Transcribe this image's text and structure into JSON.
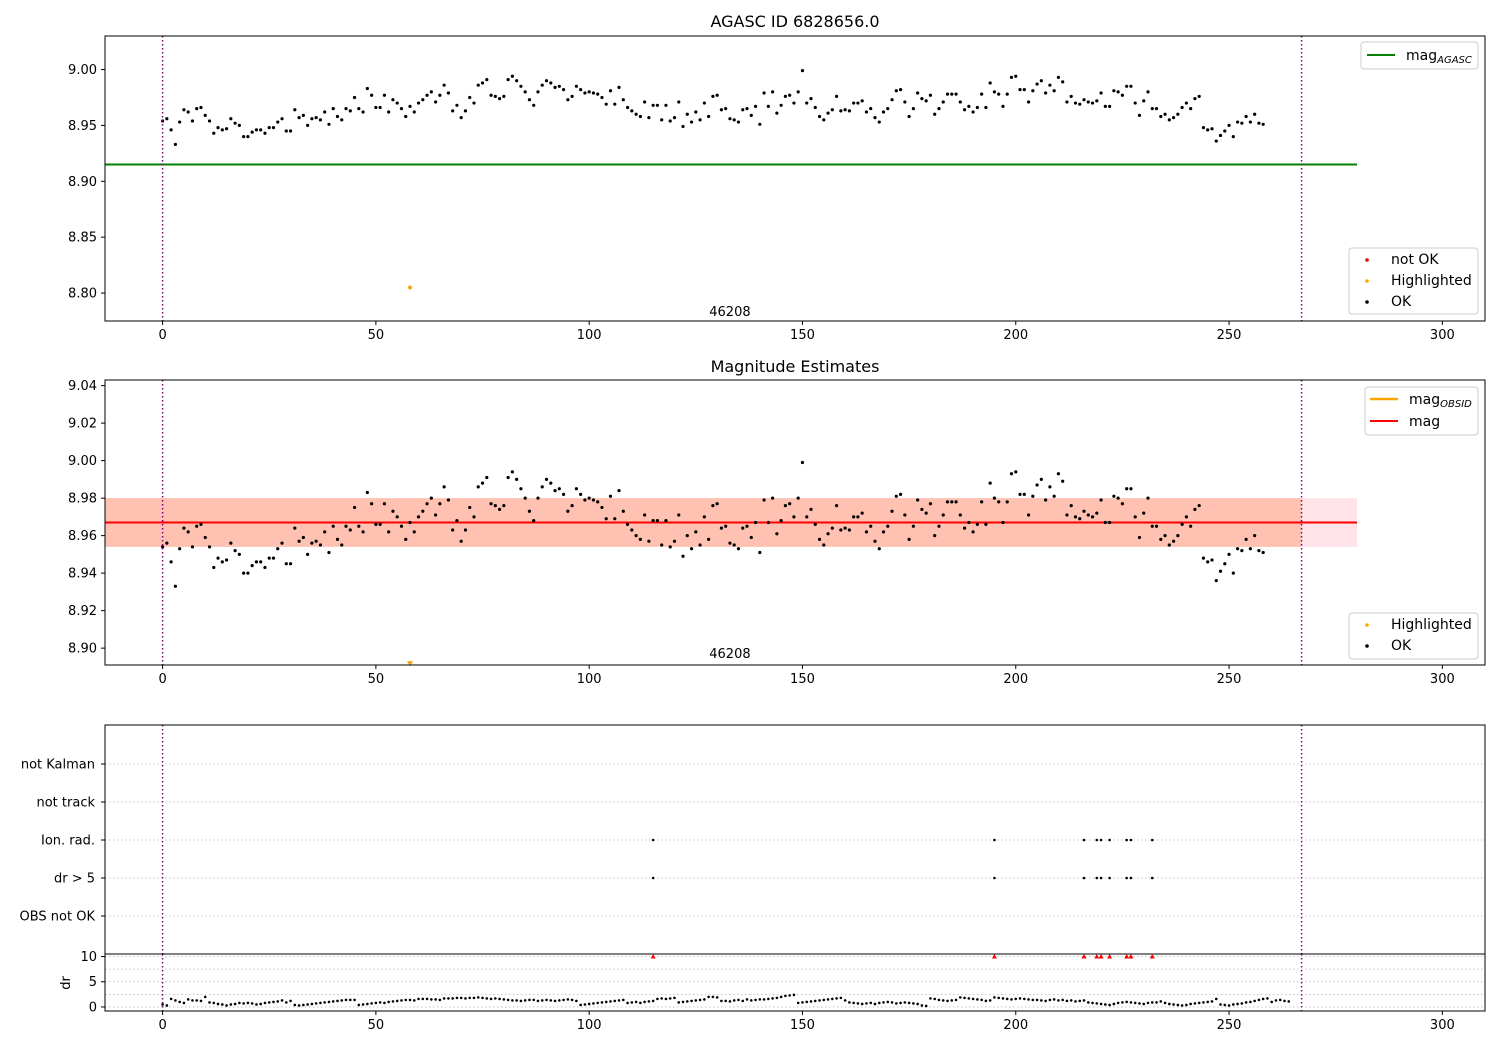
{
  "chart_data": [
    {
      "type": "scatter",
      "title": "AGASC ID 6828656.0",
      "xlim": [
        -13.5,
        310
      ],
      "ylim": [
        8.775,
        9.03
      ],
      "xticks": [
        0,
        50,
        100,
        150,
        200,
        250,
        300
      ],
      "yticks": [
        8.8,
        8.85,
        8.9,
        8.95,
        9.0
      ],
      "reference_lines": [
        {
          "name": "mag",
          "subscript": "AGASC",
          "y": 8.915,
          "x_range": [
            -13.5,
            280
          ],
          "color": "#008000"
        }
      ],
      "vlines": [
        0,
        267
      ],
      "annotation": {
        "text": "46208",
        "x": 133,
        "y": 8.783
      },
      "legend_lines_position": "upper right",
      "legend_points_position": "lower right",
      "legend_points": [
        {
          "name": "not OK",
          "color": "#ff0000"
        },
        {
          "name": "Highlighted",
          "color": "#ffa500"
        },
        {
          "name": "OK",
          "color": "#000000"
        }
      ],
      "highlighted_points": [
        {
          "x": 58,
          "y": 8.805
        }
      ],
      "grid": false
    },
    {
      "type": "scatter",
      "title": "Magnitude Estimates",
      "xlim": [
        -13.5,
        310
      ],
      "ylim": [
        8.891,
        9.043
      ],
      "xticks": [
        0,
        50,
        100,
        150,
        200,
        250,
        300
      ],
      "yticks": [
        8.9,
        8.92,
        8.94,
        8.96,
        8.98,
        9.0,
        9.02,
        9.04
      ],
      "reference_lines": [
        {
          "name": "mag",
          "subscript": "OBSID",
          "color": "#ffa500"
        },
        {
          "name": "mag",
          "y": 8.967,
          "x_range": [
            -13.5,
            280
          ],
          "color": "#ff0000"
        }
      ],
      "bands": [
        {
          "y_range": [
            8.954,
            8.98
          ],
          "x_range": [
            -13.5,
            280
          ],
          "color": "#ffc0cb"
        },
        {
          "y_range": [
            8.954,
            8.98
          ],
          "x_range": [
            -13.5,
            267
          ],
          "color": "#ffa07a"
        }
      ],
      "vlines": [
        0,
        267
      ],
      "annotation": {
        "text": "46208",
        "x": 133,
        "y": 8.897
      },
      "legend_lines_position": "upper right",
      "legend_points_position": "lower right",
      "legend_points": [
        {
          "name": "Highlighted",
          "color": "#ffa500"
        },
        {
          "name": "OK",
          "color": "#000000"
        }
      ],
      "highlighted_points": [
        {
          "x": 58,
          "y": 8.892
        }
      ],
      "grid": false
    },
    {
      "type": "scatter",
      "xlim": [
        -13.5,
        310
      ],
      "categories": [
        "not Kalman",
        "not track",
        "Ion. rad.",
        "dr > 5",
        "OBS not OK"
      ],
      "flagged_x": {
        "Ion. rad.": [
          115,
          195,
          216,
          219,
          220,
          222,
          226,
          227,
          232
        ],
        "dr > 5": [
          115,
          195,
          216,
          219,
          220,
          222,
          226,
          227,
          232
        ]
      },
      "vlines": [
        0,
        267
      ],
      "grid": "y-dotted"
    },
    {
      "type": "scatter",
      "ylabel": "dr",
      "xlim": [
        -13.5,
        310
      ],
      "ylim": [
        -0.8,
        10.5
      ],
      "xticks": [
        0,
        50,
        100,
        150,
        200,
        250,
        300
      ],
      "yticks": [
        0,
        5,
        10
      ],
      "flagged_x": [
        115,
        195,
        216,
        219,
        220,
        222,
        226,
        227,
        232
      ],
      "flagged_y": 10,
      "vlines": [
        0,
        267
      ],
      "grid": "y-dotted"
    }
  ],
  "shared_series": {
    "x_start": 0,
    "x_step": 1,
    "mag": [
      8.954,
      8.956,
      8.946,
      8.933,
      8.953,
      8.964,
      8.962,
      8.954,
      8.965,
      8.966,
      8.959,
      8.954,
      8.943,
      8.948,
      8.946,
      8.947,
      8.956,
      8.952,
      8.95,
      8.94,
      8.94,
      8.944,
      8.946,
      8.946,
      8.943,
      8.948,
      8.948,
      8.953,
      8.956,
      8.945,
      8.945,
      8.964,
      8.957,
      8.959,
      8.95,
      8.956,
      8.957,
      8.955,
      8.962,
      8.951,
      8.965,
      8.958,
      8.955,
      8.965,
      8.963,
      8.975,
      8.965,
      8.962,
      8.983,
      8.977,
      8.966,
      8.966,
      8.977,
      8.962,
      8.973,
      8.97,
      8.965,
      8.958,
      8.967,
      8.962,
      8.97,
      8.973,
      8.977,
      8.98,
      8.971,
      8.977,
      8.986,
      8.979,
      8.963,
      8.968,
      8.957,
      8.963,
      8.975,
      8.97,
      8.986,
      8.988,
      8.991,
      8.977,
      8.976,
      8.974,
      8.976,
      8.991,
      8.994,
      8.99,
      8.985,
      8.98,
      8.973,
      8.968,
      8.98,
      8.986,
      8.99,
      8.988,
      8.984,
      8.985,
      8.982,
      8.973,
      8.976,
      8.985,
      8.982,
      8.979,
      8.98,
      8.979,
      8.978,
      8.975,
      8.969,
      8.981,
      8.969,
      8.984,
      8.973,
      8.966,
      8.963,
      8.96,
      8.958,
      8.971,
      8.957,
      8.968,
      8.968,
      8.955,
      8.968,
      8.954,
      8.957,
      8.971,
      8.949,
      8.96,
      8.953,
      8.962,
      8.955,
      8.97,
      8.958,
      8.976,
      8.977,
      8.964,
      8.965,
      8.956,
      8.955,
      8.953,
      8.964,
      8.965,
      8.959,
      8.967,
      8.951,
      8.979,
      8.967,
      8.98,
      8.961,
      8.968,
      8.976,
      8.977,
      8.97,
      8.98,
      8.999,
      8.97,
      8.974,
      8.966,
      8.958,
      8.955,
      8.961,
      8.964,
      8.976,
      8.963,
      8.964,
      8.963,
      8.97,
      8.97,
      8.972,
      8.962,
      8.965,
      8.957,
      8.953,
      8.962,
      8.965,
      8.973,
      8.981,
      8.982,
      8.971,
      8.958,
      8.965,
      8.979,
      8.974,
      8.972,
      8.977,
      8.96,
      8.965,
      8.971,
      8.978,
      8.978,
      8.978,
      8.971,
      8.964,
      8.967,
      8.962,
      8.966,
      8.978,
      8.966,
      8.988,
      8.98,
      8.978,
      8.967,
      8.978,
      8.993,
      8.994,
      8.982,
      8.982,
      8.971,
      8.981,
      8.987,
      8.99,
      8.979,
      8.986,
      8.981,
      8.993,
      8.989,
      8.971,
      8.976,
      8.97,
      8.969,
      8.973,
      8.971,
      8.97,
      8.972,
      8.979,
      8.967,
      8.967,
      8.981,
      8.98,
      8.977,
      8.985,
      8.985,
      8.97,
      8.959,
      8.972,
      8.98,
      8.965,
      8.965,
      8.958,
      8.96,
      8.955,
      8.957,
      8.96,
      8.966,
      8.97,
      8.965,
      8.974,
      8.976,
      8.948,
      8.946,
      8.947,
      8.936,
      8.941,
      8.945,
      8.95,
      8.94,
      8.953,
      8.952,
      8.958,
      8.953,
      8.96,
      8.952,
      8.951
    ],
    "dr": [
      0.5,
      0.3,
      1.6,
      1.3,
      1.0,
      0.8,
      1.5,
      1.3,
      1.3,
      1.2,
      2.0,
      0.9,
      0.8,
      0.6,
      0.5,
      0.3,
      0.5,
      0.6,
      0.8,
      0.7,
      0.8,
      0.7,
      0.5,
      0.6,
      0.8,
      0.9,
      1.0,
      1.1,
      1.3,
      0.9,
      1.2,
      0.4,
      0.3,
      0.4,
      0.5,
      0.6,
      0.7,
      0.8,
      0.9,
      1.0,
      1.1,
      1.2,
      1.3,
      1.4,
      1.4,
      1.4,
      0.4,
      0.5,
      0.6,
      0.7,
      0.8,
      0.9,
      0.8,
      1.0,
      1.1,
      1.2,
      1.3,
      1.4,
      1.4,
      1.3,
      1.6,
      1.6,
      1.6,
      1.5,
      1.5,
      1.4,
      1.7,
      1.7,
      1.7,
      1.8,
      1.8,
      1.7,
      1.8,
      1.8,
      1.9,
      1.8,
      1.7,
      1.6,
      1.7,
      1.6,
      1.5,
      1.4,
      1.3,
      1.3,
      1.2,
      1.3,
      1.4,
      1.4,
      1.2,
      1.3,
      1.4,
      1.3,
      1.2,
      1.3,
      1.4,
      1.5,
      1.4,
      1.2,
      0.4,
      0.5,
      0.6,
      0.7,
      0.8,
      0.9,
      1.0,
      1.1,
      1.2,
      1.3,
      1.4,
      0.8,
      0.9,
      1.0,
      0.8,
      1.0,
      1.1,
      1.2,
      1.6,
      1.7,
      1.6,
      1.7,
      1.8,
      0.9,
      1.0,
      1.1,
      1.2,
      1.3,
      1.4,
      1.5,
      2.0,
      2.0,
      1.9,
      1.2,
      1.2,
      1.1,
      1.3,
      1.4,
      1.2,
      1.5,
      1.3,
      1.4,
      1.5,
      1.5,
      1.6,
      1.7,
      1.8,
      2.0,
      2.2,
      2.3,
      2.4,
      0.8,
      0.9,
      1.0,
      1.1,
      1.2,
      1.3,
      1.4,
      1.5,
      1.6,
      1.7,
      1.8,
      1.3,
      0.9,
      0.8,
      0.7,
      0.6,
      0.7,
      0.8,
      0.6,
      0.8,
      0.9,
      1.0,
      0.9,
      0.7,
      0.8,
      0.9,
      0.8,
      0.7,
      0.6,
      0.3,
      0.2,
      1.7,
      1.6,
      1.4,
      1.3,
      1.2,
      1.3,
      1.4,
      1.9,
      1.8,
      1.7,
      1.6,
      1.5,
      1.4,
      1.2,
      1.3,
      1.9,
      1.8,
      1.7,
      1.6,
      1.5,
      1.6,
      1.7,
      1.6,
      1.5,
      1.4,
      1.4,
      1.3,
      1.2,
      1.4,
      1.5,
      1.3,
      1.4,
      1.2,
      1.3,
      1.1,
      1.2,
      1.3,
      0.9,
      0.8,
      0.7,
      0.6,
      0.5,
      0.4,
      0.6,
      0.8,
      0.9,
      1.0,
      0.9,
      0.8,
      0.7,
      0.6,
      0.8,
      0.9,
      0.9,
      1.1,
      0.8,
      0.6,
      0.5,
      0.4,
      0.3,
      0.4,
      0.6,
      0.7,
      0.8,
      0.9,
      1.0,
      1.1,
      1.6,
      0.5,
      0.4,
      0.3,
      0.5,
      0.6,
      0.7,
      0.9,
      1.0,
      1.2,
      1.4,
      1.6,
      1.7,
      1.0,
      1.3,
      1.4,
      1.2,
      1.1
    ]
  }
}
